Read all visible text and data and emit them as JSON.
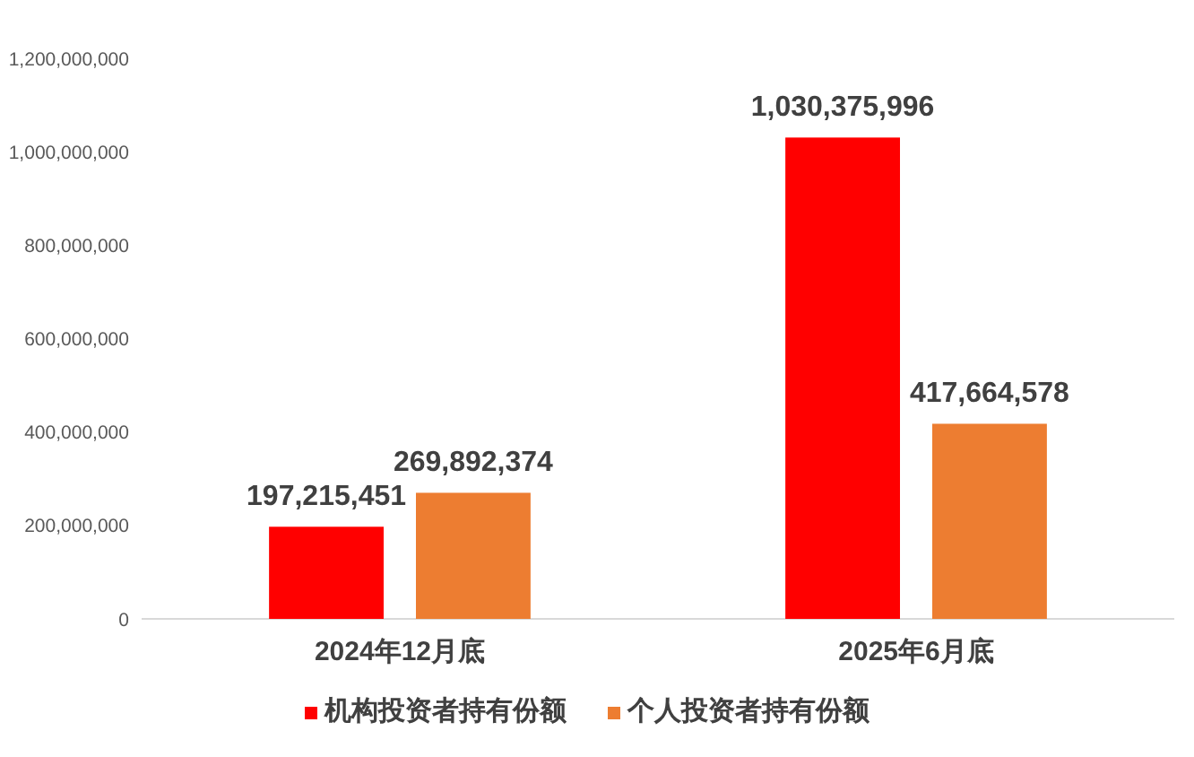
{
  "chart_data": {
    "type": "bar",
    "categories": [
      "2024年12月底",
      "2025年6月底"
    ],
    "series": [
      {
        "name": "机构投资者持有份额",
        "color": "#ff0000",
        "values": [
          197215451,
          1030375996
        ],
        "value_labels": [
          "197,215,451",
          "1,030,375,996"
        ]
      },
      {
        "name": "个人投资者持有份额",
        "color": "#ed7d31",
        "values": [
          269892374,
          417664578
        ],
        "value_labels": [
          "269,892,374",
          "417,664,578"
        ]
      }
    ],
    "ylim": [
      0,
      1200000000
    ],
    "yticks": [
      0,
      {
        "value": 200000000,
        "label": "200,000,000"
      },
      {
        "value": 400000000,
        "label": "400,000,000"
      },
      {
        "value": 600000000,
        "label": "600,000,000"
      },
      {
        "value": 800000000,
        "label": "800,000,000"
      },
      {
        "value": 1000000000,
        "label": "1,000,000,000"
      },
      {
        "value": 1200000000,
        "label": "1,200,000,000"
      }
    ],
    "legend": "bottom"
  }
}
